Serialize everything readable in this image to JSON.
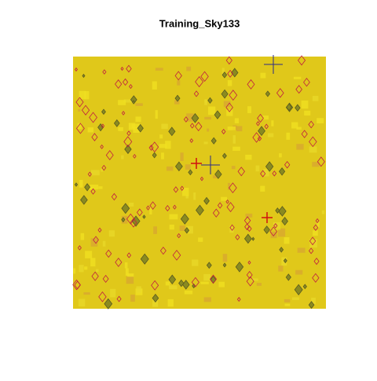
{
  "chart_data": {
    "type": "image",
    "title": "Training_Sky133"
  }
}
